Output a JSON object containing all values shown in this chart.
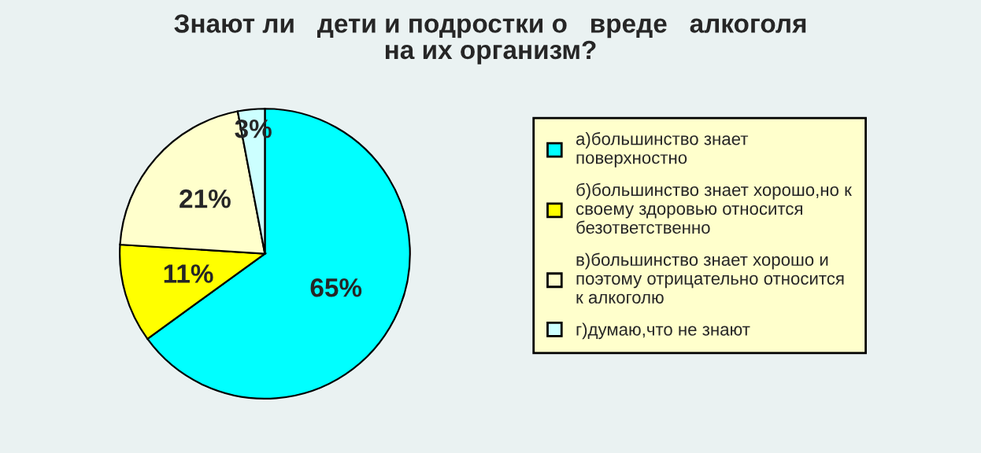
{
  "chart_data": {
    "type": "pie",
    "title": "Знают ли   дети и подростки о   вреде   алкоголя\nна их организм?",
    "categories": [
      "а)большинство знает\nповерхностно",
      "б)большинство знает хорошо,но к\nсвоему здоровью относится\nбезответственно",
      "в)большинство знает хорошо и\nпоэтому отрицательно относится\nк алкоголю",
      "г)думаю,что не знают"
    ],
    "values": [
      65,
      11,
      21,
      3
    ],
    "value_labels": [
      "65%",
      "11%",
      "21%",
      "3%"
    ],
    "colors": [
      "#00ffff",
      "#ffff00",
      "#ffffcc",
      "#ccffff"
    ],
    "legend": "right"
  }
}
